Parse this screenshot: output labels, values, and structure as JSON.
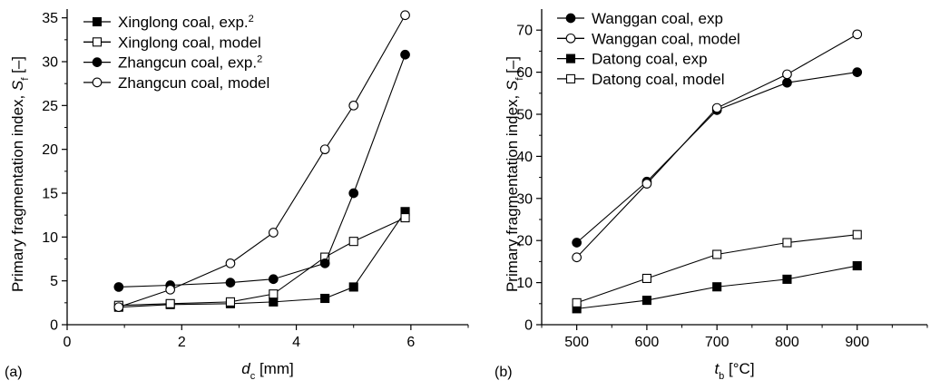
{
  "chart_data": [
    {
      "type": "line",
      "panel_label": "(a)",
      "xlabel": {
        "main": "d",
        "sub": "c",
        "rest": " [mm]"
      },
      "ylabel": {
        "main": "Primary fragmentation index, S",
        "sub": "f",
        "rest": " [–]"
      },
      "xlim": [
        0,
        7
      ],
      "ylim": [
        0,
        36
      ],
      "xticks": [
        0,
        2,
        4,
        6
      ],
      "xtick_labels": [
        "0",
        "2",
        "4",
        "6"
      ],
      "yticks": [
        0,
        5,
        10,
        15,
        20,
        25,
        30,
        35
      ],
      "ytick_labels": [
        "0",
        "5",
        "10",
        "15",
        "20",
        "25",
        "30",
        "35"
      ],
      "legend_position": "top-left",
      "series": [
        {
          "name": "Xinglong coal, exp.",
          "sup": "2",
          "marker": "square-filled",
          "x": [
            0.9,
            1.8,
            2.85,
            3.6,
            4.5,
            5.0,
            5.9
          ],
          "y": [
            2.0,
            2.3,
            2.4,
            2.6,
            3.0,
            4.3,
            12.9
          ]
        },
        {
          "name": "Xinglong coal, model",
          "sup": "",
          "marker": "square-open",
          "x": [
            0.9,
            1.8,
            2.85,
            3.6,
            4.5,
            5.0,
            5.9
          ],
          "y": [
            2.2,
            2.4,
            2.6,
            3.5,
            7.7,
            9.5,
            12.2
          ]
        },
        {
          "name": "Zhangcun coal, exp.",
          "sup": "2",
          "marker": "circle-filled",
          "x": [
            0.9,
            1.8,
            2.85,
            3.6,
            4.5,
            5.0,
            5.9
          ],
          "y": [
            4.3,
            4.5,
            4.8,
            5.2,
            7.0,
            15.0,
            30.8
          ]
        },
        {
          "name": "Zhangcun coal, model",
          "sup": "",
          "marker": "circle-open",
          "x": [
            0.9,
            1.8,
            2.85,
            3.6,
            4.5,
            5.0,
            5.9
          ],
          "y": [
            2.0,
            4.0,
            7.0,
            10.5,
            20.0,
            25.0,
            35.3
          ]
        }
      ]
    },
    {
      "type": "line",
      "panel_label": "(b)",
      "xlabel": {
        "main": "t",
        "sub": "b",
        "rest": " [°C]"
      },
      "ylabel": {
        "main": "Primary fragmentation index, S",
        "sub": "f",
        "rest": " [–]"
      },
      "xlim": [
        450,
        1000
      ],
      "ylim": [
        0,
        75
      ],
      "xticks": [
        500,
        600,
        700,
        800,
        900
      ],
      "xtick_labels": [
        "500",
        "600",
        "700",
        "800",
        "900"
      ],
      "yticks": [
        0,
        10,
        20,
        30,
        40,
        50,
        60,
        70
      ],
      "ytick_labels": [
        "0",
        "10",
        "20",
        "30",
        "40",
        "50",
        "60",
        "70"
      ],
      "legend_position": "top-left",
      "series": [
        {
          "name": "Wanggan coal, exp",
          "sup": "",
          "marker": "circle-filled",
          "x": [
            500,
            600,
            700,
            800,
            900
          ],
          "y": [
            19.5,
            34.0,
            51.0,
            57.5,
            60.0
          ]
        },
        {
          "name": "Wanggan coal, model",
          "sup": "",
          "marker": "circle-open",
          "x": [
            500,
            600,
            700,
            800,
            900
          ],
          "y": [
            16.0,
            33.5,
            51.5,
            59.5,
            69.0
          ]
        },
        {
          "name": "Datong coal, exp",
          "sup": "",
          "marker": "square-filled",
          "x": [
            500,
            600,
            700,
            800,
            900
          ],
          "y": [
            3.8,
            5.8,
            9.0,
            10.8,
            14.0
          ]
        },
        {
          "name": "Datong coal, model",
          "sup": "",
          "marker": "square-open",
          "x": [
            500,
            600,
            700,
            800,
            900
          ],
          "y": [
            5.2,
            11.0,
            16.7,
            19.5,
            21.4
          ]
        }
      ]
    }
  ]
}
